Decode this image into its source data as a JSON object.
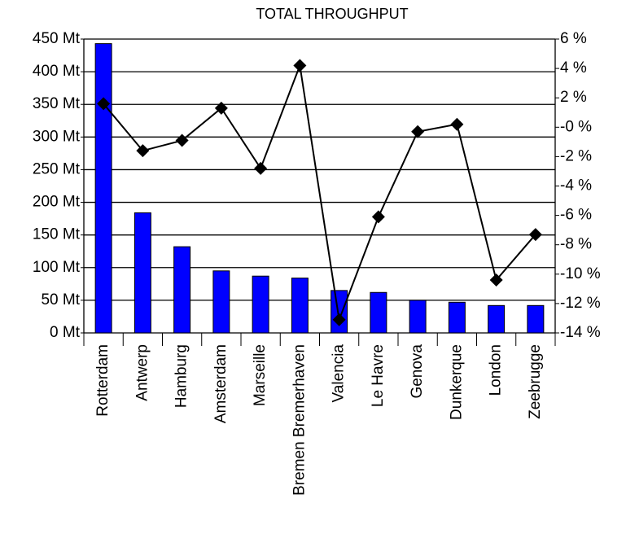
{
  "chart_data": {
    "type": "bar-line",
    "title": "TOTAL THROUGHPUT",
    "categories": [
      "Rotterdam",
      "Antwerp",
      "Hamburg",
      "Amsterdam",
      "Marseille",
      "Bremen Bremerhaven",
      "Valencia",
      "Le Havre",
      "Genova",
      "Dunkerque",
      "London",
      "Zeebrugge"
    ],
    "series": [
      {
        "type": "bar",
        "color": "#0000ff",
        "values": [
          443,
          184,
          132,
          95,
          87,
          84,
          65,
          62,
          50,
          47,
          42,
          42
        ]
      },
      {
        "type": "line",
        "axis": "y2",
        "color": "#000000",
        "values": [
          1.6,
          -1.6,
          -0.9,
          1.3,
          -2.8,
          4.2,
          -13.1,
          -6.1,
          -0.3,
          0.2,
          -10.4,
          -7.3
        ]
      }
    ],
    "ylim": [
      0,
      450
    ],
    "yticks": [
      {
        "value": 0,
        "label": "0 Mt"
      },
      {
        "value": 50,
        "label": "50 Mt"
      },
      {
        "value": 100,
        "label": "100 Mt"
      },
      {
        "value": 150,
        "label": "150 Mt"
      },
      {
        "value": 200,
        "label": "200 Mt"
      },
      {
        "value": 250,
        "label": "250 Mt"
      },
      {
        "value": 300,
        "label": "300 Mt"
      },
      {
        "value": 350,
        "label": "350 Mt"
      },
      {
        "value": 400,
        "label": "400 Mt"
      },
      {
        "value": 450,
        "label": "450 Mt"
      }
    ],
    "y2lim": [
      -14,
      6
    ],
    "y2ticks": [
      {
        "value": -14,
        "label": "-14 %"
      },
      {
        "value": -12,
        "label": "-12 %"
      },
      {
        "value": -10,
        "label": "-10 %"
      },
      {
        "value": -8,
        "label": "-8 %"
      },
      {
        "value": -6,
        "label": "-6 %"
      },
      {
        "value": -4,
        "label": "-4 %"
      },
      {
        "value": -2,
        "label": "-2 %"
      },
      {
        "value": 0,
        "label": "-0 %"
      },
      {
        "value": 2,
        "label": "2 %"
      },
      {
        "value": 4,
        "label": "4 %"
      },
      {
        "value": 6,
        "label": "6 %"
      }
    ],
    "grid": true
  }
}
